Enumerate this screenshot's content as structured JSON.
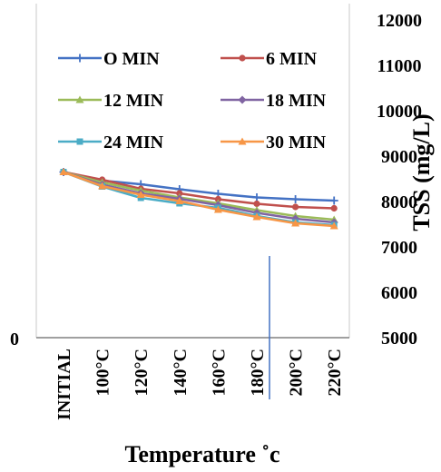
{
  "chart_data": {
    "type": "line",
    "title": "",
    "xlabel": "Temperature ˚c",
    "ylabel": "TSS (mg/L)",
    "categories": [
      "INITIAL",
      "100°C",
      "120°C",
      "140°C",
      "160°C",
      "180°C",
      "200°C",
      "220°C"
    ],
    "y_right_ticks": [
      "5000",
      "6000",
      "7000",
      "8000",
      "9000",
      "10000",
      "11000",
      "12000"
    ],
    "ylim": [
      5000,
      12000
    ],
    "y_left_tick": "0",
    "y_axis_side": "right",
    "legend_position": "top-left",
    "grid": false,
    "series": [
      {
        "name": "O MIN",
        "color": "#4472C4",
        "marker": "plus",
        "values": [
          8650,
          8460,
          8380,
          8270,
          8170,
          8090,
          8050,
          8020
        ]
      },
      {
        "name": "6 MIN",
        "color": "#C0504D",
        "marker": "circle",
        "values": [
          8650,
          8480,
          8280,
          8180,
          8050,
          7950,
          7880,
          7850
        ]
      },
      {
        "name": "12 MIN",
        "color": "#9BBB59",
        "marker": "triangle",
        "values": [
          8650,
          8420,
          8240,
          8090,
          7960,
          7810,
          7680,
          7600
        ]
      },
      {
        "name": "18 MIN",
        "color": "#8064A2",
        "marker": "diamond",
        "values": [
          8650,
          8370,
          8180,
          8060,
          7920,
          7750,
          7620,
          7540
        ]
      },
      {
        "name": "24 MIN",
        "color": "#4BACC6",
        "marker": "square",
        "values": [
          8650,
          8330,
          8080,
          7960,
          7860,
          7680,
          7540,
          7480
        ]
      },
      {
        "name": "30 MIN",
        "color": "#F79646",
        "marker": "triangle",
        "values": [
          8650,
          8340,
          8150,
          8010,
          7820,
          7660,
          7520,
          7460
        ]
      }
    ]
  }
}
